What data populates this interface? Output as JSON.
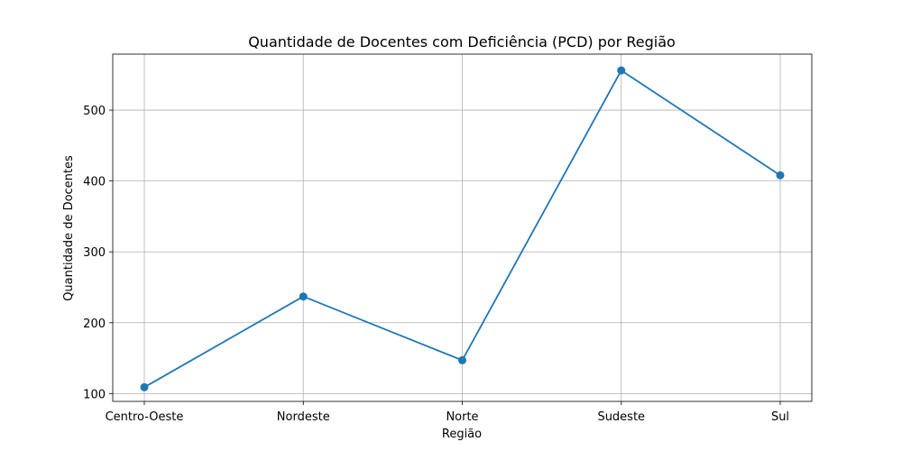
{
  "chart_data": {
    "type": "line",
    "title": "Quantidade de Docentes com Deficiência (PCD) por Região",
    "xlabel": "Região",
    "ylabel": "Quantidade de Docentes",
    "categories": [
      "Centro-Oeste",
      "Nordeste",
      "Norte",
      "Sudeste",
      "Sul"
    ],
    "series": [
      {
        "values": [
          109,
          237,
          147,
          556,
          408
        ],
        "color": "#1f77b4",
        "marker": "circle"
      }
    ],
    "yticks": [
      100,
      200,
      300,
      400,
      500
    ],
    "ylim": [
      89,
      579
    ],
    "grid": true
  }
}
